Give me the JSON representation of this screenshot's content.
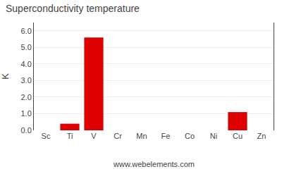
{
  "chart_data": {
    "type": "bar",
    "title": "Superconductivity temperature",
    "ylabel": "K",
    "annotations": [
      "www.webelements.com"
    ],
    "categories": [
      "Sc",
      "Ti",
      "V",
      "Cr",
      "Mn",
      "Fe",
      "Co",
      "Ni",
      "Cu",
      "Zn"
    ],
    "values": [
      0.0,
      0.4,
      5.6,
      0.0,
      0.0,
      0.0,
      0.0,
      0.0,
      1.1,
      0.0
    ],
    "color": "#dd0000",
    "ylim": [
      0.0,
      6.5
    ],
    "yticks": [
      {
        "value": 0,
        "label": "0.0"
      },
      {
        "value": 1,
        "label": "1.0"
      },
      {
        "value": 2,
        "label": "2.0"
      },
      {
        "value": 3,
        "label": "3.0"
      },
      {
        "value": 4,
        "label": "4.0"
      },
      {
        "value": 5,
        "label": "5.0"
      },
      {
        "value": 6,
        "label": "6.0"
      }
    ],
    "grid": true
  }
}
